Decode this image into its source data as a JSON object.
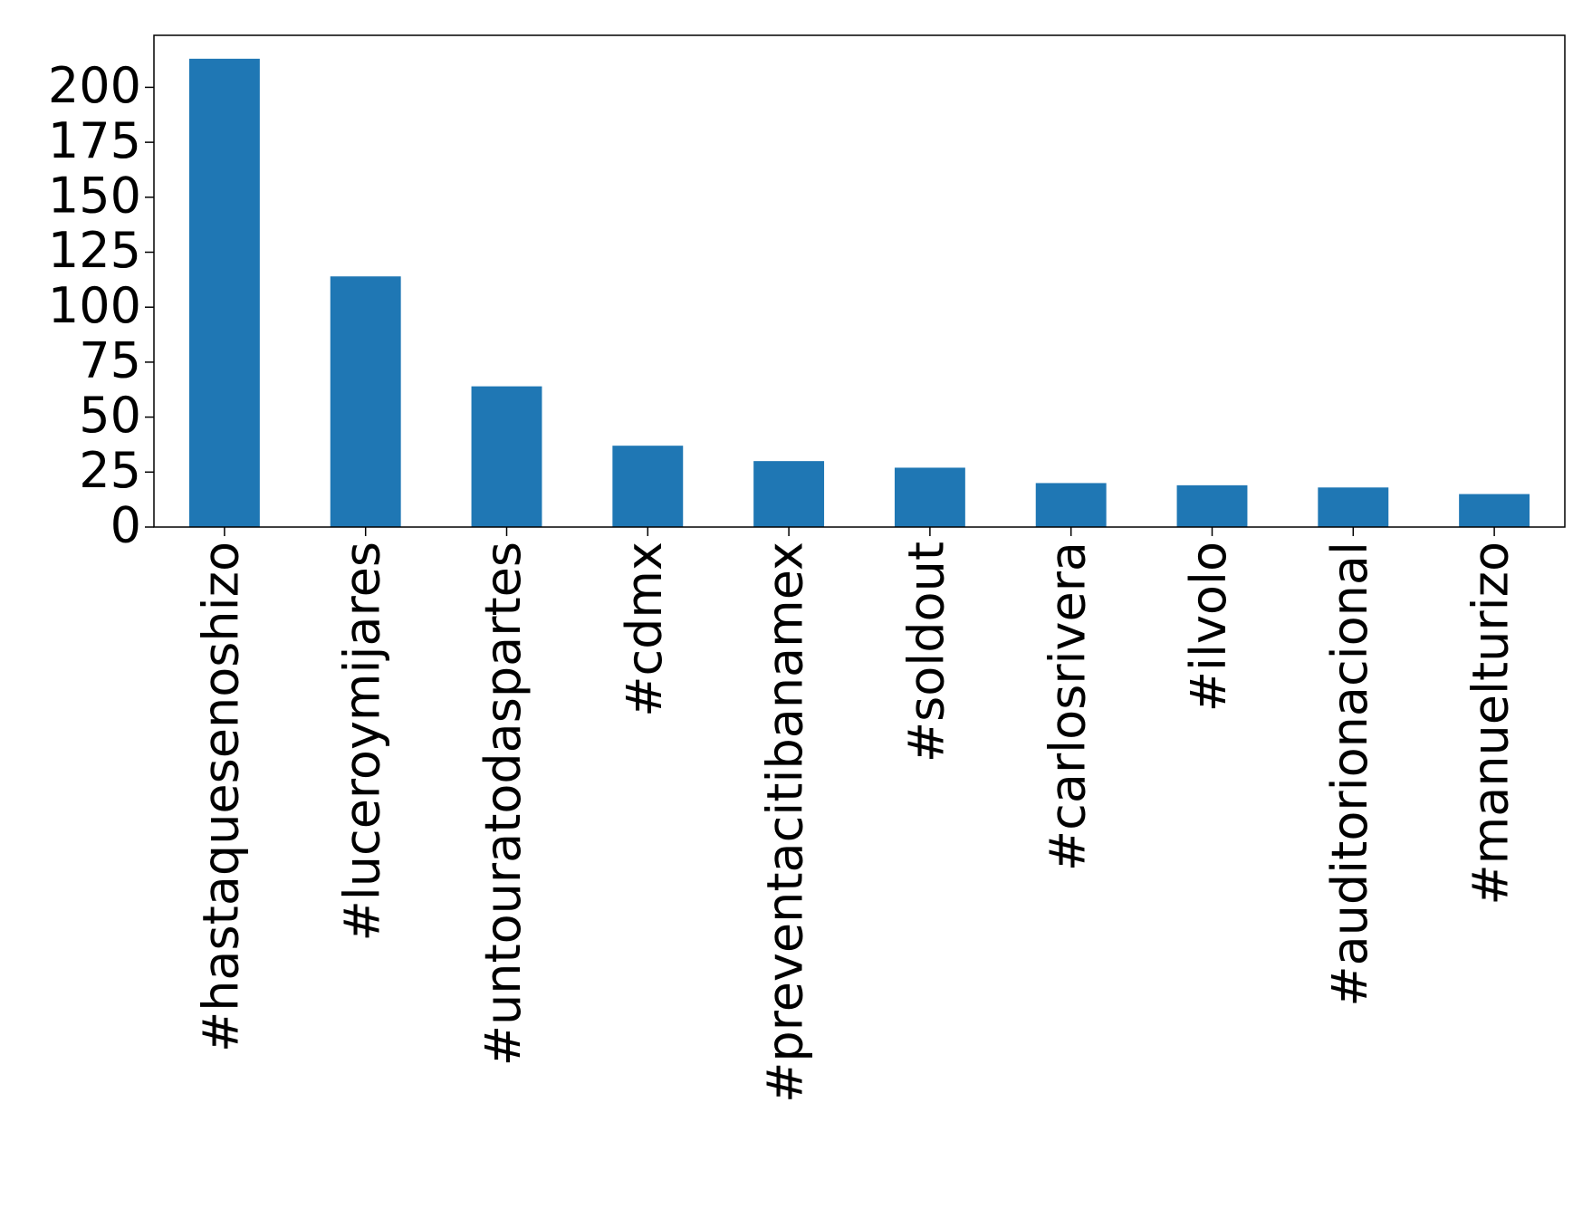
{
  "chart_data": {
    "type": "bar",
    "categories": [
      "#hastaquesenoshizo",
      "#luceroymijares",
      "#untouratodaspartes",
      "#cdmx",
      "#preventacitibanamex",
      "#soldout",
      "#carlosrivera",
      "#ilvolo",
      "#auditorionacional",
      "#manuelturizo"
    ],
    "values": [
      213,
      114,
      64,
      37,
      30,
      27,
      20,
      19,
      18,
      15
    ],
    "color": "#1f77b4",
    "ylim": [
      0,
      223.65
    ],
    "yticks": [
      0,
      25,
      50,
      75,
      100,
      125,
      150,
      175,
      200
    ],
    "grid": false
  }
}
